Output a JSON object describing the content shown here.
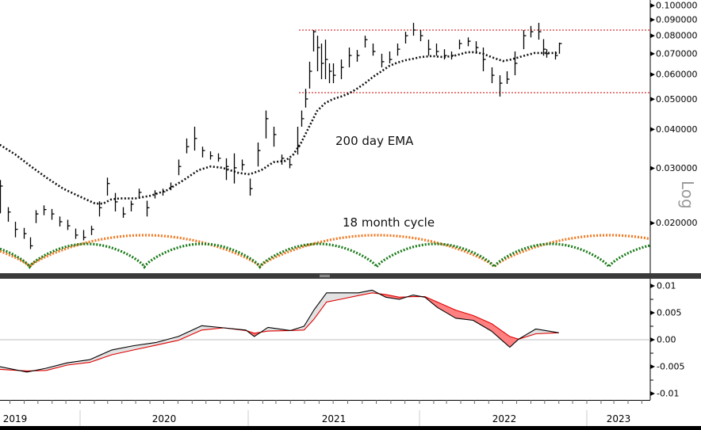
{
  "chart_data": [
    {
      "type": "bar",
      "subtype": "ohlc-price-log",
      "yscale": "log",
      "ylim": [
        0.0155,
        0.105
      ],
      "y_label": "Log",
      "y_ticks": [
        "0.100000",
        "0.090000",
        "0.080000",
        "0.070000",
        "0.060000",
        "0.050000",
        "0.040000",
        "0.030000",
        "0.020000"
      ],
      "y_tick_values": [
        0.1,
        0.09,
        0.08,
        0.07,
        0.06,
        0.05,
        0.04,
        0.03,
        0.02
      ],
      "grid": false,
      "price_columns": [
        "date",
        "high",
        "low",
        "close"
      ],
      "price": [
        [
          "2019-07-10",
          0.0275,
          0.0215,
          0.0263
        ],
        [
          "2019-07-27",
          0.0225,
          0.0202,
          0.0217
        ],
        [
          "2019-08-13",
          0.0202,
          0.018,
          0.0191
        ],
        [
          "2019-08-31",
          0.0193,
          0.0178,
          0.0185
        ],
        [
          "2019-09-14",
          0.018,
          0.0165,
          0.0169
        ],
        [
          "2019-09-26",
          0.022,
          0.02,
          0.0214
        ],
        [
          "2019-10-13",
          0.0228,
          0.0212,
          0.0221
        ],
        [
          "2019-10-31",
          0.0222,
          0.0205,
          0.0214
        ],
        [
          "2019-11-17",
          0.021,
          0.0195,
          0.0202
        ],
        [
          "2019-12-04",
          0.0205,
          0.019,
          0.0196
        ],
        [
          "2019-12-21",
          0.0192,
          0.0178,
          0.0183
        ],
        [
          "2020-01-08",
          0.019,
          0.0176,
          0.018
        ],
        [
          "2020-01-25",
          0.0196,
          0.0183,
          0.0191
        ],
        [
          "2020-02-11",
          0.0235,
          0.021,
          0.0224
        ],
        [
          "2020-02-28",
          0.028,
          0.0245,
          0.0268
        ],
        [
          "2020-03-17",
          0.025,
          0.0218,
          0.0234
        ],
        [
          "2020-04-03",
          0.0225,
          0.0208,
          0.0214
        ],
        [
          "2020-04-20",
          0.0236,
          0.0218,
          0.023
        ],
        [
          "2020-05-08",
          0.0258,
          0.024,
          0.0251
        ],
        [
          "2020-05-25",
          0.0236,
          0.021,
          0.0224
        ],
        [
          "2020-06-11",
          0.0255,
          0.024,
          0.0249
        ],
        [
          "2020-06-29",
          0.0258,
          0.0245,
          0.0252
        ],
        [
          "2020-07-16",
          0.027,
          0.0255,
          0.0262
        ],
        [
          "2020-08-02",
          0.032,
          0.0285,
          0.0304
        ],
        [
          "2020-08-19",
          0.0374,
          0.0335,
          0.0352
        ],
        [
          "2020-09-06",
          0.0408,
          0.0342,
          0.0374
        ],
        [
          "2020-09-23",
          0.0352,
          0.0325,
          0.0342
        ],
        [
          "2020-10-10",
          0.034,
          0.032,
          0.0329
        ],
        [
          "2020-10-27",
          0.0335,
          0.0315,
          0.0323
        ],
        [
          "2020-11-14",
          0.0323,
          0.0275,
          0.0304
        ],
        [
          "2020-12-01",
          0.0335,
          0.0268,
          0.0301
        ],
        [
          "2020-12-18",
          0.032,
          0.0295,
          0.0308
        ],
        [
          "2021-01-04",
          0.0278,
          0.0245,
          0.0258
        ],
        [
          "2021-01-21",
          0.0363,
          0.0304,
          0.0342
        ],
        [
          "2021-02-07",
          0.046,
          0.0374,
          0.0433
        ],
        [
          "2021-02-24",
          0.0408,
          0.0352,
          0.0385
        ],
        [
          "2021-03-13",
          0.0332,
          0.0308,
          0.0323
        ],
        [
          "2021-03-30",
          0.0323,
          0.03,
          0.0308
        ],
        [
          "2021-04-16",
          0.0408,
          0.0332,
          0.0352
        ],
        [
          "2021-04-24",
          0.046,
          0.0408,
          0.0433
        ],
        [
          "2021-05-03",
          0.054,
          0.047,
          0.0501
        ],
        [
          "2021-05-11",
          0.066,
          0.0541,
          0.0615
        ],
        [
          "2021-05-20",
          0.0834,
          0.0712,
          0.0824
        ],
        [
          "2021-05-28",
          0.08,
          0.0615,
          0.0733
        ],
        [
          "2021-06-06",
          0.0755,
          0.058,
          0.0652
        ],
        [
          "2021-06-14",
          0.0777,
          0.058,
          0.0671
        ],
        [
          "2021-06-22",
          0.0652,
          0.0563,
          0.0615
        ],
        [
          "2021-07-01",
          0.0652,
          0.0563,
          0.0597
        ],
        [
          "2021-07-18",
          0.0671,
          0.058,
          0.0633
        ],
        [
          "2021-08-04",
          0.0733,
          0.0633,
          0.0691
        ],
        [
          "2021-08-21",
          0.072,
          0.066,
          0.0691
        ],
        [
          "2021-09-07",
          0.08,
          0.0733,
          0.0777
        ],
        [
          "2021-09-24",
          0.0755,
          0.069,
          0.0712
        ],
        [
          "2021-10-12",
          0.07,
          0.0633,
          0.066
        ],
        [
          "2021-10-29",
          0.0712,
          0.0652,
          0.0671
        ],
        [
          "2021-11-15",
          0.0755,
          0.069,
          0.0724
        ],
        [
          "2021-12-02",
          0.0824,
          0.0755,
          0.08
        ],
        [
          "2021-12-19",
          0.088,
          0.08,
          0.0834
        ],
        [
          "2022-01-03",
          0.0834,
          0.0768,
          0.08
        ],
        [
          "2022-01-20",
          0.0777,
          0.069,
          0.0724
        ],
        [
          "2022-02-06",
          0.0755,
          0.069,
          0.0712
        ],
        [
          "2022-02-23",
          0.0724,
          0.0671,
          0.0691
        ],
        [
          "2022-03-12",
          0.0712,
          0.0671,
          0.0691
        ],
        [
          "2022-03-29",
          0.0777,
          0.0724,
          0.0755
        ],
        [
          "2022-04-16",
          0.079,
          0.074,
          0.0768
        ],
        [
          "2022-05-03",
          0.0768,
          0.07,
          0.0733
        ],
        [
          "2022-05-20",
          0.0733,
          0.0615,
          0.0671
        ],
        [
          "2022-06-07",
          0.0633,
          0.0563,
          0.0597
        ],
        [
          "2022-06-24",
          0.0597,
          0.051,
          0.0563
        ],
        [
          "2022-07-11",
          0.0615,
          0.056,
          0.058
        ],
        [
          "2022-07-28",
          0.0712,
          0.0597,
          0.0652
        ],
        [
          "2022-08-15",
          0.0834,
          0.0724,
          0.08
        ],
        [
          "2022-09-01",
          0.086,
          0.079,
          0.0824
        ],
        [
          "2022-09-18",
          0.088,
          0.0777,
          0.0824
        ],
        [
          "2022-09-27",
          0.078,
          0.069,
          0.0724
        ],
        [
          "2022-10-05",
          0.0724,
          0.068,
          0.07
        ],
        [
          "2022-10-23",
          0.0712,
          0.0671,
          0.0691
        ],
        [
          "2022-11-02",
          0.076,
          0.07,
          0.0755
        ]
      ],
      "ema": {
        "label": "200 day EMA",
        "color": "#111111",
        "points": [
          [
            "2019-07-10",
            0.0357
          ],
          [
            "2019-08-13",
            0.0332
          ],
          [
            "2019-09-16",
            0.0304
          ],
          [
            "2019-10-21",
            0.0279
          ],
          [
            "2019-11-25",
            0.0258
          ],
          [
            "2019-12-30",
            0.0244
          ],
          [
            "2020-02-03",
            0.0231
          ],
          [
            "2020-02-20",
            0.0231
          ],
          [
            "2020-03-08",
            0.0238
          ],
          [
            "2020-03-26",
            0.024
          ],
          [
            "2020-04-30",
            0.024
          ],
          [
            "2020-06-03",
            0.0245
          ],
          [
            "2020-07-08",
            0.0255
          ],
          [
            "2020-08-12",
            0.0274
          ],
          [
            "2020-09-15",
            0.0296
          ],
          [
            "2020-10-11",
            0.0304
          ],
          [
            "2020-11-06",
            0.0301
          ],
          [
            "2020-12-11",
            0.029
          ],
          [
            "2021-01-04",
            0.0287
          ],
          [
            "2021-01-29",
            0.0296
          ],
          [
            "2021-02-24",
            0.0314
          ],
          [
            "2021-03-21",
            0.0317
          ],
          [
            "2021-04-07",
            0.0332
          ],
          [
            "2021-04-24",
            0.0363
          ],
          [
            "2021-05-11",
            0.0408
          ],
          [
            "2021-05-28",
            0.0459
          ],
          [
            "2021-06-14",
            0.0486
          ],
          [
            "2021-07-01",
            0.0501
          ],
          [
            "2021-07-18",
            0.051
          ],
          [
            "2021-08-04",
            0.0522
          ],
          [
            "2021-08-21",
            0.0541
          ],
          [
            "2021-09-07",
            0.0563
          ],
          [
            "2021-09-24",
            0.059
          ],
          [
            "2021-10-12",
            0.0615
          ],
          [
            "2021-10-29",
            0.064
          ],
          [
            "2021-11-15",
            0.0656
          ],
          [
            "2021-12-02",
            0.0667
          ],
          [
            "2021-12-19",
            0.0675
          ],
          [
            "2022-01-03",
            0.0683
          ],
          [
            "2022-01-28",
            0.0688
          ],
          [
            "2022-02-23",
            0.0683
          ],
          [
            "2022-03-20",
            0.0691
          ],
          [
            "2022-04-16",
            0.0708
          ],
          [
            "2022-05-03",
            0.0708
          ],
          [
            "2022-05-20",
            0.07
          ],
          [
            "2022-06-07",
            0.0683
          ],
          [
            "2022-07-02",
            0.0663
          ],
          [
            "2022-07-20",
            0.0671
          ],
          [
            "2022-08-15",
            0.0688
          ],
          [
            "2022-09-09",
            0.0704
          ],
          [
            "2022-10-05",
            0.0704
          ],
          [
            "2022-11-01",
            0.0704
          ]
        ]
      },
      "horizontal_lines": [
        {
          "value": 0.0834,
          "color": "#cc0000",
          "style": "dotted"
        },
        {
          "value": 0.0525,
          "color": "#cc0000",
          "style": "dotted"
        }
      ],
      "cycles": [
        {
          "label": "18 month cycle",
          "color": "#f07820",
          "troughs": [
            "2019-09-13",
            "2021-01-26",
            "2022-06-13"
          ]
        },
        {
          "label": "",
          "color": "#1a7a1a",
          "troughs": [
            "2019-09-13",
            "2020-05-20",
            "2021-01-26",
            "2021-10-02",
            "2022-06-13",
            "2023-02-18"
          ]
        }
      ]
    },
    {
      "type": "area",
      "subtype": "oscillator-with-signal",
      "ylim": [
        -0.011,
        0.011
      ],
      "y_ticks": [
        "0.01",
        "0.005",
        "0.00",
        "-0.005",
        "-0.01"
      ],
      "y_tick_values": [
        0.01,
        0.005,
        0,
        -0.005,
        -0.01
      ],
      "zero_line": true,
      "fill_above_color": "#e2e2e2",
      "fill_below_color": "#ff8080",
      "x": [
        "2019-07-10",
        "2019-09-07",
        "2019-10-19",
        "2019-12-04",
        "2020-01-22",
        "2020-03-10",
        "2020-04-27",
        "2020-06-15",
        "2020-08-02",
        "2020-09-22",
        "2020-11-09",
        "2020-12-27",
        "2021-01-14",
        "2021-02-12",
        "2021-04-01",
        "2021-04-30",
        "2021-05-21",
        "2021-06-17",
        "2021-07-16",
        "2021-08-24",
        "2021-09-22",
        "2021-10-21",
        "2021-11-19",
        "2021-12-18",
        "2022-01-13",
        "2022-02-09",
        "2022-03-21",
        "2022-04-28",
        "2022-06-07",
        "2022-07-17",
        "2022-08-05",
        "2022-09-12",
        "2022-11-01"
      ],
      "series": [
        {
          "color": "#000000",
          "values": [
            -0.005,
            -0.006,
            -0.0053,
            -0.0043,
            -0.0037,
            -0.0019,
            -0.0011,
            -0.0005,
            0.0006,
            0.0026,
            0.0022,
            0.0018,
            0.0006,
            0.0023,
            0.0017,
            0.0025,
            0.0055,
            0.0087,
            0.0087,
            0.0087,
            0.0092,
            0.0079,
            0.0075,
            0.0083,
            0.0079,
            0.006,
            0.004,
            0.0036,
            0.0016,
            -0.0014,
            0.0001,
            0.002,
            0.0013
          ]
        },
        {
          "color": "#e00000",
          "values": [
            -0.0055,
            -0.0058,
            -0.0057,
            -0.0047,
            -0.0042,
            -0.0028,
            -0.0019,
            -0.001,
            -0.0001,
            0.0018,
            0.0022,
            0.0017,
            0.0012,
            0.0016,
            0.0017,
            0.0018,
            0.0038,
            0.007,
            0.0075,
            0.0082,
            0.0087,
            0.0084,
            0.0079,
            0.008,
            0.008,
            0.007,
            0.0055,
            0.0045,
            0.003,
            0.0006,
            0.0001,
            0.0011,
            0.0013
          ]
        }
      ]
    }
  ],
  "x_axis": {
    "year_labels": [
      "2019",
      "2020",
      "2021",
      "2022",
      "2023"
    ]
  },
  "annotations": {
    "ema_label": "200 day EMA",
    "cycle_label": "18 month cycle",
    "log_label": "Log"
  }
}
